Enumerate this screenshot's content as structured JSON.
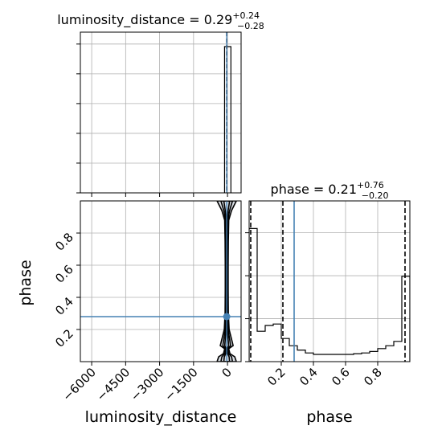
{
  "colors": {
    "truth": "#4682b4",
    "hist": "#000000",
    "grid": "#b0b0b0"
  },
  "chart_data": [
    {
      "panel": "luminosity_distance-marginal",
      "type": "histogram",
      "title_param": "luminosity_distance",
      "title_value": "0.29",
      "title_plus": "+0.24",
      "title_minus": "−0.28",
      "xlim": [
        -6500,
        600
      ],
      "bins": [
        {
          "x0": -130,
          "x1": 150,
          "count": 1.0
        }
      ],
      "quantiles": [
        0.0,
        0.29
      ],
      "truth": 0.29,
      "grid": true
    },
    {
      "panel": "phase-marginal",
      "type": "histogram",
      "title_param": "phase",
      "title_value": "0.21",
      "title_plus": "+0.76",
      "title_minus": "−0.20",
      "xlim": [
        0.0,
        1.0
      ],
      "ylim": [
        0,
        1.0
      ],
      "x_ticks": [
        "0.2",
        "0.4",
        "0.6",
        "0.8"
      ],
      "x_tick_values": [
        0.2,
        0.4,
        0.6,
        0.8
      ],
      "xlabel": "phase",
      "bin_edges": [
        0.0,
        0.05,
        0.1,
        0.15,
        0.2,
        0.25,
        0.3,
        0.35,
        0.4,
        0.45,
        0.5,
        0.55,
        0.6,
        0.65,
        0.7,
        0.75,
        0.8,
        0.85,
        0.9,
        0.95,
        1.0
      ],
      "counts": [
        0.92,
        0.21,
        0.25,
        0.26,
        0.16,
        0.11,
        0.08,
        0.06,
        0.05,
        0.05,
        0.05,
        0.05,
        0.05,
        0.055,
        0.06,
        0.07,
        0.09,
        0.11,
        0.14,
        0.59
      ],
      "quantiles": [
        0.01,
        0.21,
        0.97
      ],
      "truth": 0.28,
      "grid": true
    },
    {
      "panel": "2d-contour",
      "type": "contour",
      "xlim": [
        -6500,
        600
      ],
      "ylim": [
        0.0,
        1.0
      ],
      "x_ticks": [
        "−6000",
        "−4500",
        "−3000",
        "−1500",
        "0"
      ],
      "x_tick_values": [
        -6000,
        -4500,
        -3000,
        -1500,
        0
      ],
      "y_ticks": [
        "0.2",
        "0.4",
        "0.6",
        "0.8"
      ],
      "y_tick_values": [
        0.2,
        0.4,
        0.6,
        0.8
      ],
      "xlabel": "luminosity_distance",
      "ylabel": "phase",
      "truth": {
        "x": 0.29,
        "y": 0.28
      },
      "grid": true
    }
  ]
}
